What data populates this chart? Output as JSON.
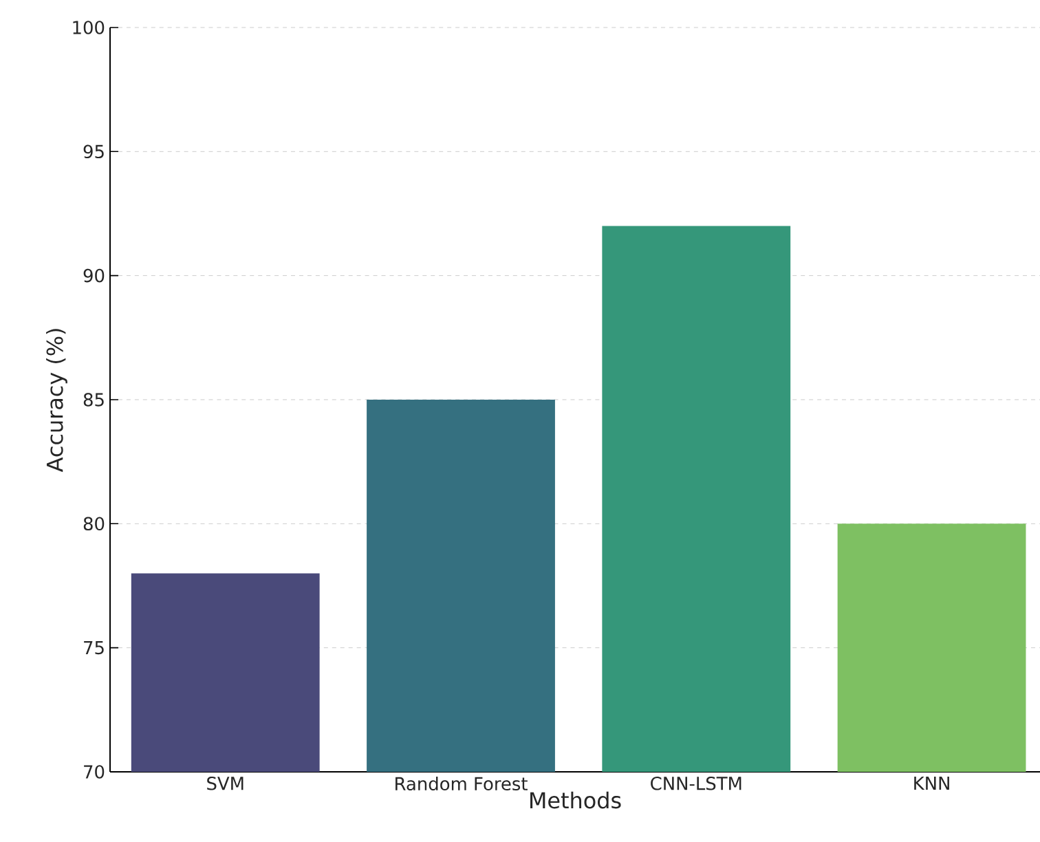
{
  "chart_data": {
    "type": "bar",
    "xlabel": "Methods",
    "ylabel": "Accuracy (%)",
    "categories": [
      "SVM",
      "Random Forest",
      "CNN-LSTM",
      "KNN"
    ],
    "values": [
      78,
      85,
      92,
      80
    ],
    "colors": [
      "#4a4a7a",
      "#357080",
      "#35977a",
      "#7ec062"
    ],
    "ylim": [
      70,
      100
    ],
    "yticks": [
      70,
      75,
      80,
      85,
      90,
      95,
      100
    ],
    "grid": "y"
  }
}
